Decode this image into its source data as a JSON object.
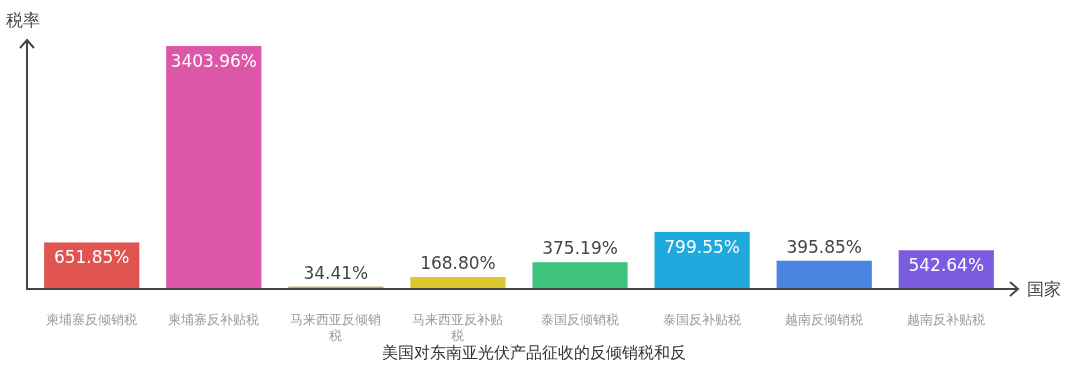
{
  "chart_data": {
    "type": "bar",
    "title": "美国对东南亚光伏产品征收的反倾销税和反",
    "xlabel": "国家",
    "ylabel": "税率",
    "categories": [
      "柬埔寨反倾销税",
      "柬埔寨反补贴税",
      "马来西亚反倾销税",
      "马来西亚反补贴税",
      "泰国反倾销税",
      "泰国反补贴税",
      "越南反倾销税",
      "越南反补贴税"
    ],
    "values": [
      651.85,
      3403.96,
      34.41,
      168.8,
      375.19,
      799.55,
      395.85,
      542.64
    ],
    "colors": [
      "#e05552",
      "#dc57a8",
      "#c9a96a",
      "#dcc82e",
      "#3fc47f",
      "#1fa9dc",
      "#4a84e0",
      "#7b5ce0"
    ],
    "value_labels": [
      "651.85%",
      "3403.96%",
      "34.41%",
      "168.80%",
      "375.19%",
      "799.55%",
      "395.85%",
      "542.64%"
    ]
  }
}
